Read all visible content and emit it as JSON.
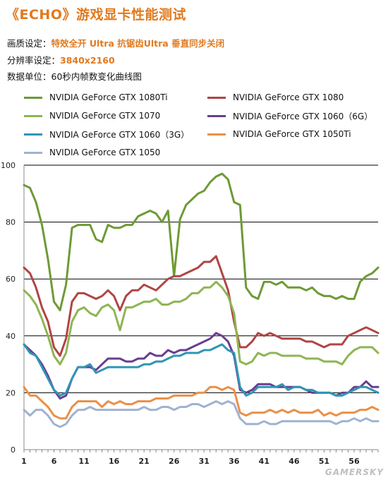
{
  "header": {
    "title": "《ECHO》游戏显卡性能测试",
    "quality_label": "画质设定：",
    "quality_value": "特效全开  Ultra  抗锯齿Ultra  垂直同步关闭",
    "resolution_label": "分辨率设定：",
    "resolution_value": "3840x2160",
    "unit_text": "数据单位：60秒内帧数变化曲线图"
  },
  "watermark": "GAMERSKY",
  "chart_data": {
    "type": "line",
    "xlim": [
      1,
      60
    ],
    "ylim": [
      0,
      100
    ],
    "x_ticks": [
      1,
      6,
      11,
      16,
      21,
      26,
      31,
      36,
      41,
      46,
      51,
      56
    ],
    "y_ticks": [
      0,
      20,
      40,
      60,
      80,
      100
    ],
    "grid": "horizontal",
    "legend_position": "top",
    "series": [
      {
        "name": "NVIDIA GeForce GTX 1080Ti",
        "color": "#6e9a36",
        "values": [
          93,
          92,
          87,
          79,
          67,
          52,
          49,
          58,
          78,
          79,
          79,
          79,
          74,
          73,
          79,
          78,
          78,
          79,
          79,
          82,
          83,
          84,
          83,
          80,
          84,
          61,
          81,
          86,
          88,
          90,
          91,
          94,
          96,
          97,
          95,
          87,
          86,
          57,
          54,
          53,
          59,
          59,
          58,
          59,
          57,
          57,
          57,
          56,
          57,
          55,
          54,
          54,
          53,
          54,
          53,
          53,
          59,
          61,
          62,
          64
        ]
      },
      {
        "name": "NVIDIA GeForce GTX 1080",
        "color": "#b04544",
        "values": [
          64,
          62,
          57,
          50,
          45,
          36,
          33,
          39,
          52,
          55,
          55,
          54,
          53,
          54,
          56,
          54,
          49,
          54,
          56,
          56,
          58,
          57,
          56,
          58,
          60,
          61,
          61,
          62,
          63,
          64,
          66,
          66,
          68,
          62,
          56,
          45,
          36,
          36,
          38,
          41,
          40,
          41,
          40,
          39,
          39,
          39,
          39,
          38,
          38,
          37,
          36,
          37,
          37,
          37,
          40,
          41,
          42,
          43,
          42,
          41
        ]
      },
      {
        "name": "NVIDIA GeForce GTX 1070",
        "color": "#8eb554",
        "values": [
          56,
          54,
          51,
          46,
          40,
          33,
          30,
          34,
          45,
          49,
          50,
          48,
          47,
          50,
          51,
          49,
          42,
          50,
          50,
          51,
          52,
          52,
          53,
          51,
          51,
          52,
          52,
          53,
          55,
          55,
          57,
          57,
          59,
          57,
          54,
          48,
          31,
          30,
          31,
          34,
          33,
          34,
          34,
          33,
          33,
          33,
          33,
          32,
          32,
          32,
          31,
          31,
          31,
          30,
          33,
          35,
          36,
          36,
          36,
          34
        ]
      },
      {
        "name": "NVIDIA GeForce GTX 1060（6G）",
        "color": "#6a3d8f",
        "values": [
          37,
          35,
          33,
          30,
          26,
          21,
          18,
          19,
          25,
          29,
          29,
          29,
          28,
          30,
          32,
          32,
          32,
          31,
          31,
          32,
          32,
          34,
          33,
          33,
          35,
          34,
          35,
          35,
          36,
          37,
          38,
          39,
          41,
          40,
          38,
          33,
          21,
          20,
          21,
          23,
          23,
          23,
          22,
          22,
          22,
          22,
          22,
          21,
          20,
          20,
          20,
          20,
          19,
          20,
          20,
          22,
          22,
          24,
          22,
          22
        ]
      },
      {
        "name": "NVIDIA GeForce GTX 1060（3G）",
        "color": "#2f95b6",
        "values": [
          37,
          34,
          33,
          29,
          25,
          21,
          19,
          20,
          25,
          29,
          29,
          30,
          27,
          28,
          29,
          29,
          29,
          29,
          29,
          29,
          30,
          30,
          31,
          31,
          32,
          33,
          33,
          34,
          34,
          34,
          35,
          35,
          36,
          37,
          35,
          34,
          22,
          19,
          20,
          22,
          22,
          22,
          22,
          23,
          21,
          22,
          22,
          21,
          21,
          20,
          20,
          20,
          19,
          19,
          20,
          21,
          22,
          22,
          21,
          20
        ]
      },
      {
        "name": "NVIDIA GeForce GTX 1050Ti",
        "color": "#e8914a",
        "values": [
          22,
          19,
          19,
          17,
          15,
          12,
          11,
          11,
          15,
          17,
          17,
          17,
          17,
          15,
          17,
          16,
          17,
          16,
          16,
          17,
          17,
          17,
          18,
          18,
          18,
          19,
          19,
          19,
          19,
          20,
          20,
          22,
          22,
          21,
          22,
          21,
          13,
          12,
          13,
          13,
          13,
          14,
          13,
          14,
          13,
          14,
          13,
          13,
          13,
          14,
          12,
          13,
          12,
          13,
          13,
          13,
          14,
          14,
          15,
          14
        ]
      },
      {
        "name": "NVIDIA GeForce GTX 1050",
        "color": "#9fb2d2",
        "values": [
          14,
          12,
          14,
          14,
          12,
          9,
          8,
          9,
          12,
          14,
          14,
          15,
          14,
          14,
          14,
          14,
          14,
          14,
          14,
          14,
          15,
          14,
          14,
          15,
          15,
          14,
          15,
          15,
          16,
          16,
          15,
          16,
          17,
          16,
          17,
          16,
          11,
          9,
          9,
          9,
          10,
          9,
          9,
          10,
          10,
          10,
          10,
          10,
          10,
          10,
          10,
          10,
          9,
          10,
          10,
          11,
          10,
          11,
          10,
          10
        ]
      }
    ]
  }
}
